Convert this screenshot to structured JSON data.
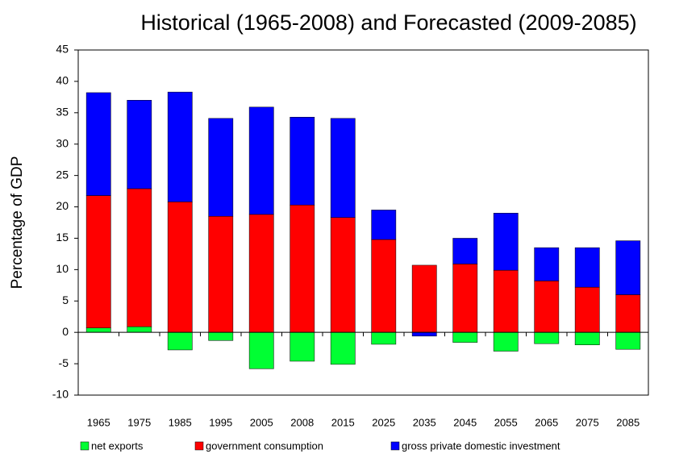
{
  "chart_data": {
    "type": "stacked_bar",
    "title": "Historical (1965-2008) and Forecasted (2009-2085)",
    "y_label": "Percentage of GDP",
    "categories": [
      "1965",
      "1975",
      "1985",
      "1995",
      "2005",
      "2008",
      "2015",
      "2025",
      "2035",
      "2045",
      "2055",
      "2065",
      "2075",
      "2085"
    ],
    "series": [
      {
        "name": "net exports",
        "color": "#00ff33",
        "values": [
          0.7,
          0.9,
          -2.8,
          -1.3,
          -5.8,
          -4.6,
          -5.1,
          -1.9,
          0,
          -1.6,
          -3.0,
          -1.8,
          -2.0,
          -2.7
        ]
      },
      {
        "name": "government consumption",
        "color": "#ff0000",
        "values": [
          21.1,
          22.0,
          20.8,
          18.5,
          18.8,
          20.3,
          18.3,
          14.8,
          10.7,
          10.9,
          9.9,
          8.2,
          7.2,
          6.0
        ]
      },
      {
        "name": "gross private domestic investment",
        "color": "#0000ff",
        "values": [
          16.4,
          14.1,
          17.5,
          15.6,
          17.1,
          14.0,
          15.8,
          4.7,
          -0.6,
          4.1,
          9.1,
          5.3,
          6.3,
          8.6
        ]
      }
    ],
    "ylim": [
      -10,
      45
    ],
    "yticks": [
      -10,
      -5,
      0,
      5,
      10,
      15,
      20,
      25,
      30,
      35,
      40,
      45
    ],
    "grid": false,
    "legend": "bottom"
  }
}
